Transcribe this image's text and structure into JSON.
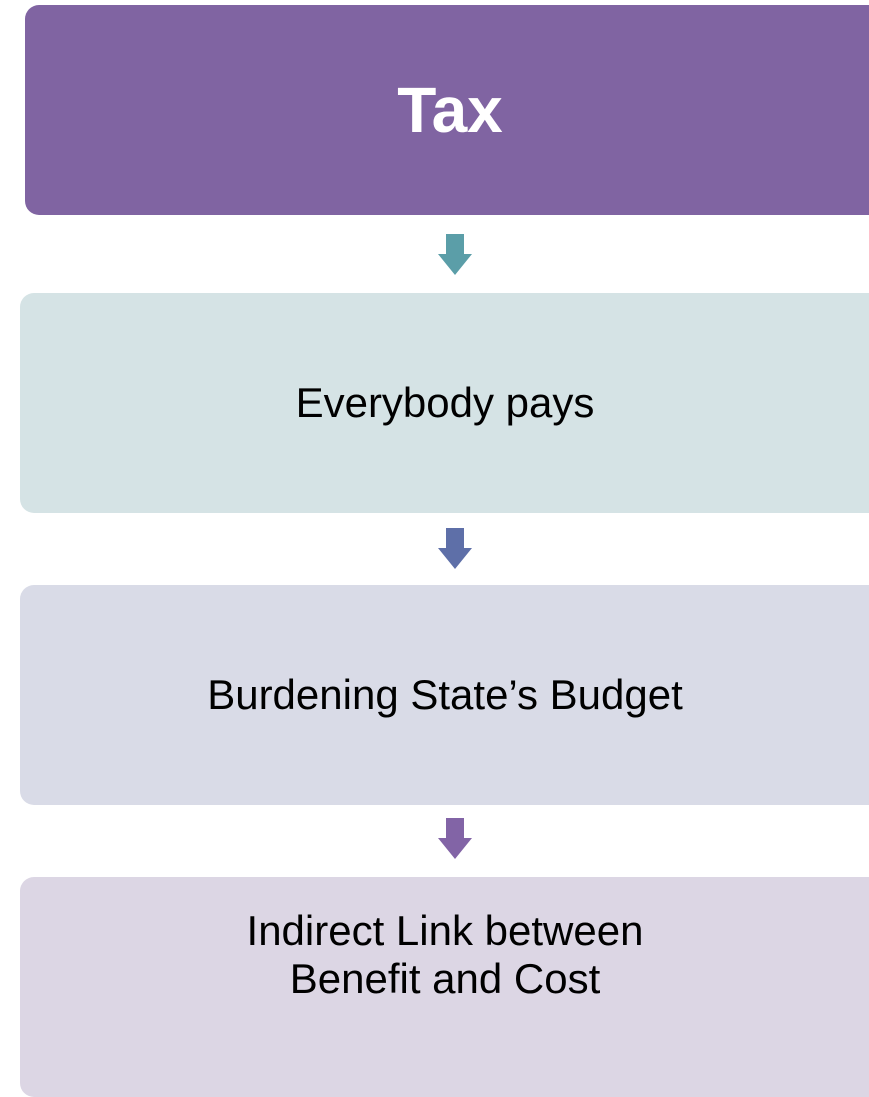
{
  "nodes": [
    {
      "label": "Tax"
    },
    {
      "label": "Everybody pays"
    },
    {
      "label": "Burdening State’s Budget"
    },
    {
      "label": "Indirect Link between Benefit and Cost"
    }
  ]
}
